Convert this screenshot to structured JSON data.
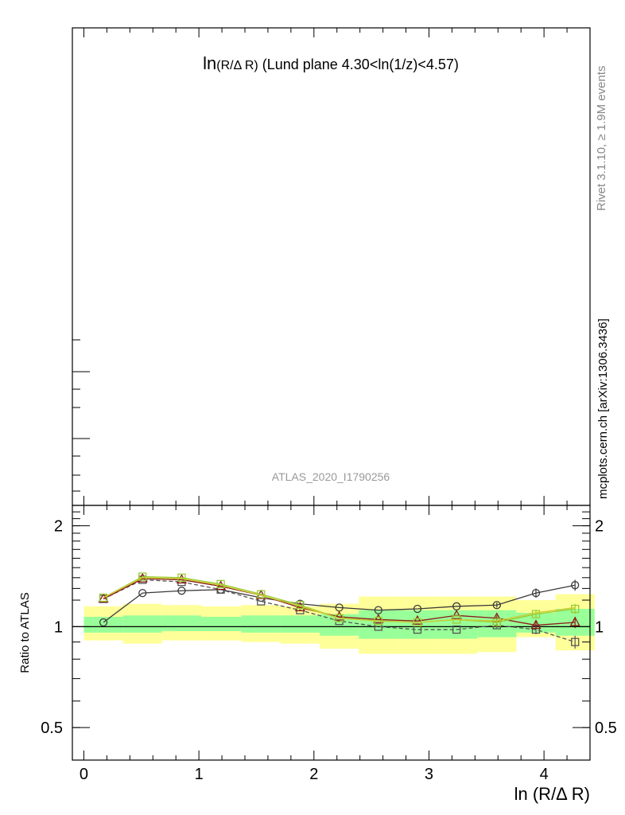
{
  "chart_data": {
    "type": "line",
    "title": "ln(R/Δ R) (Lund plane 4.30<ln(1/z)<4.57)",
    "title_main": "ln",
    "title_sub": "(R/Δ R)",
    "title_rest": " (Lund plane 4.30<ln(1/z)<4.57)",
    "analysis_label": "ATLAS_2020_I1790256",
    "xlabel": "ln (R/Δ R)",
    "ylabel": "Ratio to ATLAS",
    "xlim": [
      -0.1,
      4.4
    ],
    "ylim": [
      0.4,
      2.3
    ],
    "y_scale": "log",
    "x_ticks": [
      "0",
      "1",
      "2",
      "3",
      "4"
    ],
    "y_ticks": [
      "0.5",
      "1",
      "2"
    ],
    "reference_line": 1,
    "side_label_top": "Rivet 3.1.10, ≥ 1.9M events",
    "side_label_bottom": "mcplots.cern.ch [arXiv:1306.3436]",
    "bands": {
      "x_edges": [
        0.0,
        0.34,
        0.68,
        1.02,
        1.37,
        1.71,
        2.05,
        2.39,
        2.73,
        3.07,
        3.42,
        3.76,
        4.1,
        4.44
      ],
      "yellow_lo": [
        0.91,
        0.89,
        0.91,
        0.91,
        0.9,
        0.89,
        0.86,
        0.83,
        0.83,
        0.83,
        0.84,
        0.93,
        0.85
      ],
      "yellow_hi": [
        1.15,
        1.17,
        1.16,
        1.15,
        1.16,
        1.15,
        1.17,
        1.23,
        1.23,
        1.23,
        1.23,
        1.2,
        1.25
      ],
      "green_lo": [
        0.96,
        0.96,
        0.97,
        0.97,
        0.96,
        0.96,
        0.94,
        0.92,
        0.92,
        0.92,
        0.93,
        0.96,
        0.94
      ],
      "green_hi": [
        1.07,
        1.08,
        1.08,
        1.07,
        1.08,
        1.08,
        1.09,
        1.12,
        1.12,
        1.12,
        1.12,
        1.1,
        1.13
      ],
      "yellow_color": "#ffff99",
      "green_color": "#99ff99"
    },
    "x": [
      0.17,
      0.51,
      0.85,
      1.19,
      1.54,
      1.88,
      2.22,
      2.56,
      2.9,
      3.24,
      3.59,
      3.93,
      4.27
    ],
    "series": [
      {
        "marker": "circle",
        "color": "#3a3a3a",
        "dash": "solid",
        "values": [
          1.03,
          1.26,
          1.28,
          1.29,
          1.22,
          1.17,
          1.14,
          1.12,
          1.13,
          1.15,
          1.16,
          1.26,
          1.33
        ],
        "err": [
          0.01,
          0.01,
          0.01,
          0.01,
          0.01,
          0.01,
          0.01,
          0.01,
          0.01,
          0.01,
          0.02,
          0.04,
          0.05
        ]
      },
      {
        "marker": "square",
        "color": "#555555",
        "dash": "dashed",
        "values": [
          1.21,
          1.38,
          1.36,
          1.29,
          1.19,
          1.12,
          1.04,
          1.0,
          0.98,
          0.98,
          1.01,
          0.98,
          0.9
        ],
        "err": [
          0.01,
          0.01,
          0.01,
          0.01,
          0.01,
          0.01,
          0.01,
          0.01,
          0.01,
          0.01,
          0.02,
          0.03,
          0.04
        ]
      },
      {
        "marker": "triangle",
        "color": "#8b1a1a",
        "dash": "solid",
        "values": [
          1.21,
          1.39,
          1.38,
          1.32,
          1.24,
          1.14,
          1.07,
          1.05,
          1.04,
          1.08,
          1.06,
          1.01,
          1.03
        ],
        "err": [
          0.01,
          0.01,
          0.01,
          0.01,
          0.01,
          0.01,
          0.01,
          0.01,
          0.01,
          0.01,
          0.02,
          0.03,
          0.04
        ]
      },
      {
        "marker": "square",
        "color": "#99cc33",
        "dash": "solid",
        "values": [
          1.22,
          1.41,
          1.4,
          1.34,
          1.25,
          1.16,
          1.06,
          1.04,
          1.03,
          1.05,
          1.03,
          1.09,
          1.13
        ],
        "err": [
          0.01,
          0.01,
          0.01,
          0.01,
          0.01,
          0.01,
          0.01,
          0.01,
          0.01,
          0.01,
          0.02,
          0.03,
          0.04
        ]
      },
      {
        "marker": "none",
        "color": "#cccc33",
        "dash": "solid",
        "values": [
          1.22,
          1.4,
          1.39,
          1.33,
          1.24,
          1.15,
          1.06,
          1.04,
          1.03,
          1.05,
          1.04,
          1.1,
          1.14
        ],
        "err": [
          0,
          0,
          0,
          0,
          0,
          0,
          0,
          0,
          0,
          0,
          0,
          0,
          0
        ]
      }
    ]
  }
}
